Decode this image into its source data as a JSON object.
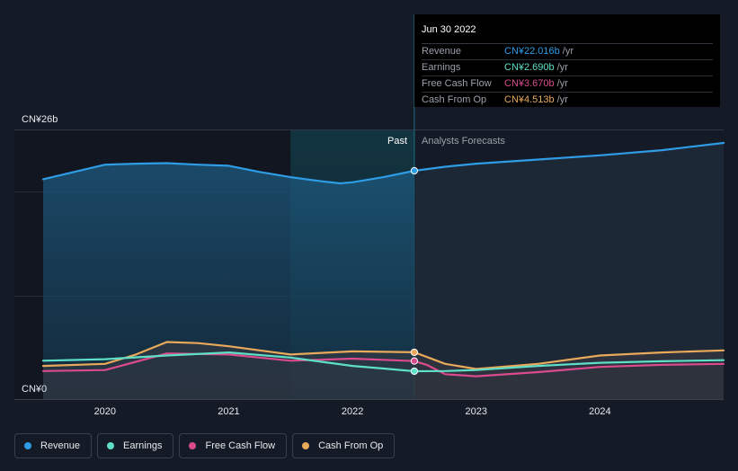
{
  "chart_data": {
    "type": "line",
    "y_unit_labels": {
      "top": "CN¥26b",
      "bottom": "CN¥0"
    },
    "ylim": [
      0,
      26
    ],
    "xlim": [
      2019.5,
      2025
    ],
    "x_ticks": [
      2020,
      2021,
      2022,
      2023,
      2024
    ],
    "past_divider_x": 2022.5,
    "region_labels": {
      "past": "Past",
      "forecast": "Analysts Forecasts"
    },
    "grid": true,
    "legend_position": "bottom-left",
    "series": [
      {
        "name": "Revenue",
        "color": "#2f9ce6",
        "x": [
          2019.5,
          2019.75,
          2020.0,
          2020.25,
          2020.5,
          2020.75,
          2021.0,
          2021.25,
          2021.5,
          2021.75,
          2021.9,
          2022.0,
          2022.25,
          2022.5,
          2022.75,
          2023.0,
          2023.5,
          2024.0,
          2024.5,
          2025.0
        ],
        "y": [
          21.2,
          21.9,
          22.6,
          22.7,
          22.75,
          22.6,
          22.5,
          21.9,
          21.4,
          21.0,
          20.8,
          20.9,
          21.4,
          22.016,
          22.4,
          22.7,
          23.1,
          23.5,
          24.0,
          24.7
        ]
      },
      {
        "name": "Earnings",
        "color": "#5ee0c8",
        "x": [
          2019.5,
          2020.0,
          2020.5,
          2021.0,
          2021.5,
          2021.75,
          2022.0,
          2022.25,
          2022.5,
          2022.75,
          2023.0,
          2023.5,
          2024.0,
          2024.5,
          2025.0
        ],
        "y": [
          3.7,
          3.85,
          4.2,
          4.5,
          4.0,
          3.6,
          3.2,
          2.95,
          2.69,
          2.7,
          2.8,
          3.2,
          3.5,
          3.65,
          3.75
        ]
      },
      {
        "name": "Free Cash Flow",
        "color": "#d94b8c",
        "x": [
          2019.5,
          2020.0,
          2020.25,
          2020.5,
          2021.0,
          2021.5,
          2022.0,
          2022.5,
          2022.6,
          2022.75,
          2023.0,
          2023.5,
          2024.0,
          2024.5,
          2025.0
        ],
        "y": [
          2.7,
          2.8,
          3.6,
          4.4,
          4.3,
          3.7,
          3.9,
          3.67,
          3.3,
          2.4,
          2.2,
          2.6,
          3.1,
          3.3,
          3.4
        ]
      },
      {
        "name": "Cash From Op",
        "color": "#e8a95a",
        "x": [
          2019.5,
          2020.0,
          2020.25,
          2020.5,
          2020.75,
          2021.0,
          2021.25,
          2021.5,
          2022.0,
          2022.5,
          2022.75,
          2023.0,
          2023.5,
          2024.0,
          2024.5,
          2025.0
        ],
        "y": [
          3.2,
          3.4,
          4.3,
          5.5,
          5.4,
          5.1,
          4.7,
          4.3,
          4.6,
          4.513,
          3.4,
          2.9,
          3.4,
          4.2,
          4.5,
          4.7
        ]
      }
    ]
  },
  "tooltip": {
    "date": "Jun 30 2022",
    "unit": "/yr",
    "rows": [
      {
        "name": "Revenue",
        "value": "CN¥22.016b",
        "color": "#2f9ce6"
      },
      {
        "name": "Earnings",
        "value": "CN¥2.690b",
        "color": "#5ee0c8"
      },
      {
        "name": "Free Cash Flow",
        "value": "CN¥3.670b",
        "color": "#d94b8c"
      },
      {
        "name": "Cash From Op",
        "value": "CN¥4.513b",
        "color": "#e8a95a"
      }
    ]
  },
  "legend": [
    {
      "label": "Revenue",
      "color": "#2f9ce6"
    },
    {
      "label": "Earnings",
      "color": "#5ee0c8"
    },
    {
      "label": "Free Cash Flow",
      "color": "#d94b8c"
    },
    {
      "label": "Cash From Op",
      "color": "#e8a95a"
    }
  ]
}
